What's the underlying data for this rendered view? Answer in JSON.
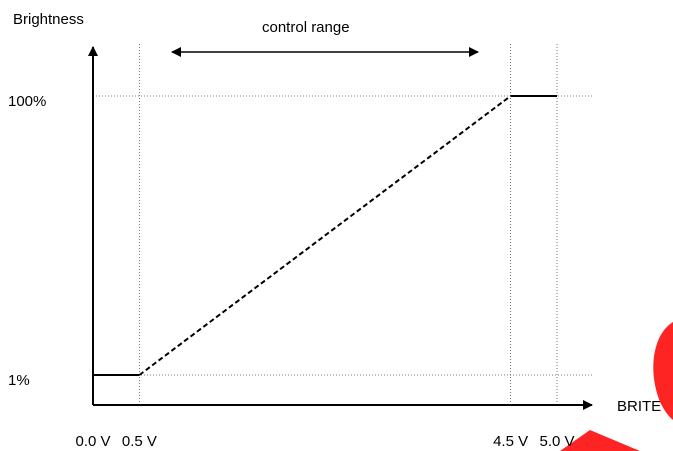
{
  "chart_data": {
    "type": "line",
    "ylabel": "Brightness",
    "xlabel": "BRITE",
    "annotation": "control range",
    "x_ticks": [
      {
        "value": 0.0,
        "label": "0.0 V"
      },
      {
        "value": 0.5,
        "label": "0.5 V"
      },
      {
        "value": 4.5,
        "label": "4.5 V"
      },
      {
        "value": 5.0,
        "label": "5.0 V"
      }
    ],
    "y_ticks": [
      {
        "value": 1,
        "label": "1%"
      },
      {
        "value": 100,
        "label": "100%"
      }
    ],
    "series": [
      {
        "style": "solid",
        "x": [
          0.0,
          0.5
        ],
        "y": [
          1,
          1
        ]
      },
      {
        "style": "dashed",
        "x": [
          0.5,
          4.5
        ],
        "y": [
          1,
          100
        ]
      },
      {
        "style": "solid",
        "x": [
          4.5,
          5.0
        ],
        "y": [
          100,
          100
        ]
      }
    ],
    "control_range": [
      0.5,
      4.5
    ],
    "xlim": [
      0.0,
      5.0
    ],
    "ylim": [
      1,
      100
    ],
    "grid": "dotted at tick values",
    "colors": {
      "line": "#000000",
      "grid": "#555555",
      "decoration": "#ff2020"
    }
  }
}
